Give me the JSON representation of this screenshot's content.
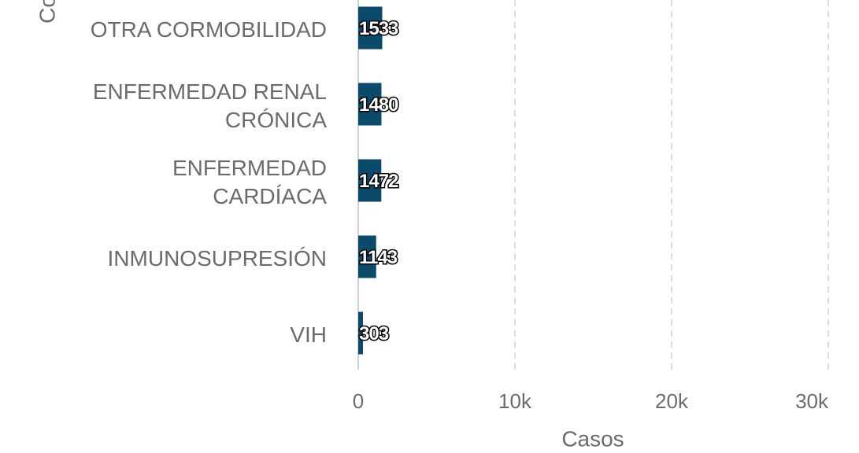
{
  "chart_data": {
    "type": "bar",
    "orientation": "horizontal",
    "y_axis_label": "Co",
    "x_axis_label": "Casos",
    "categories": [
      "OTRA CORMOBILIDAD",
      "ENFERMEDAD RENAL\nCRÓNICA",
      "ENFERMEDAD\nCARDÍACA",
      "INMUNOSUPRESIÓN",
      "VIH"
    ],
    "values": [
      1533,
      1480,
      1472,
      1143,
      303
    ],
    "color": "#0c4a6b",
    "xlim": [
      0,
      30000
    ],
    "xticks": [
      0,
      {
        "value": 10000,
        "label": "10k"
      },
      {
        "value": 20000,
        "label": "20k"
      },
      {
        "value": 30000,
        "label": "30k"
      }
    ],
    "grid": true
  }
}
